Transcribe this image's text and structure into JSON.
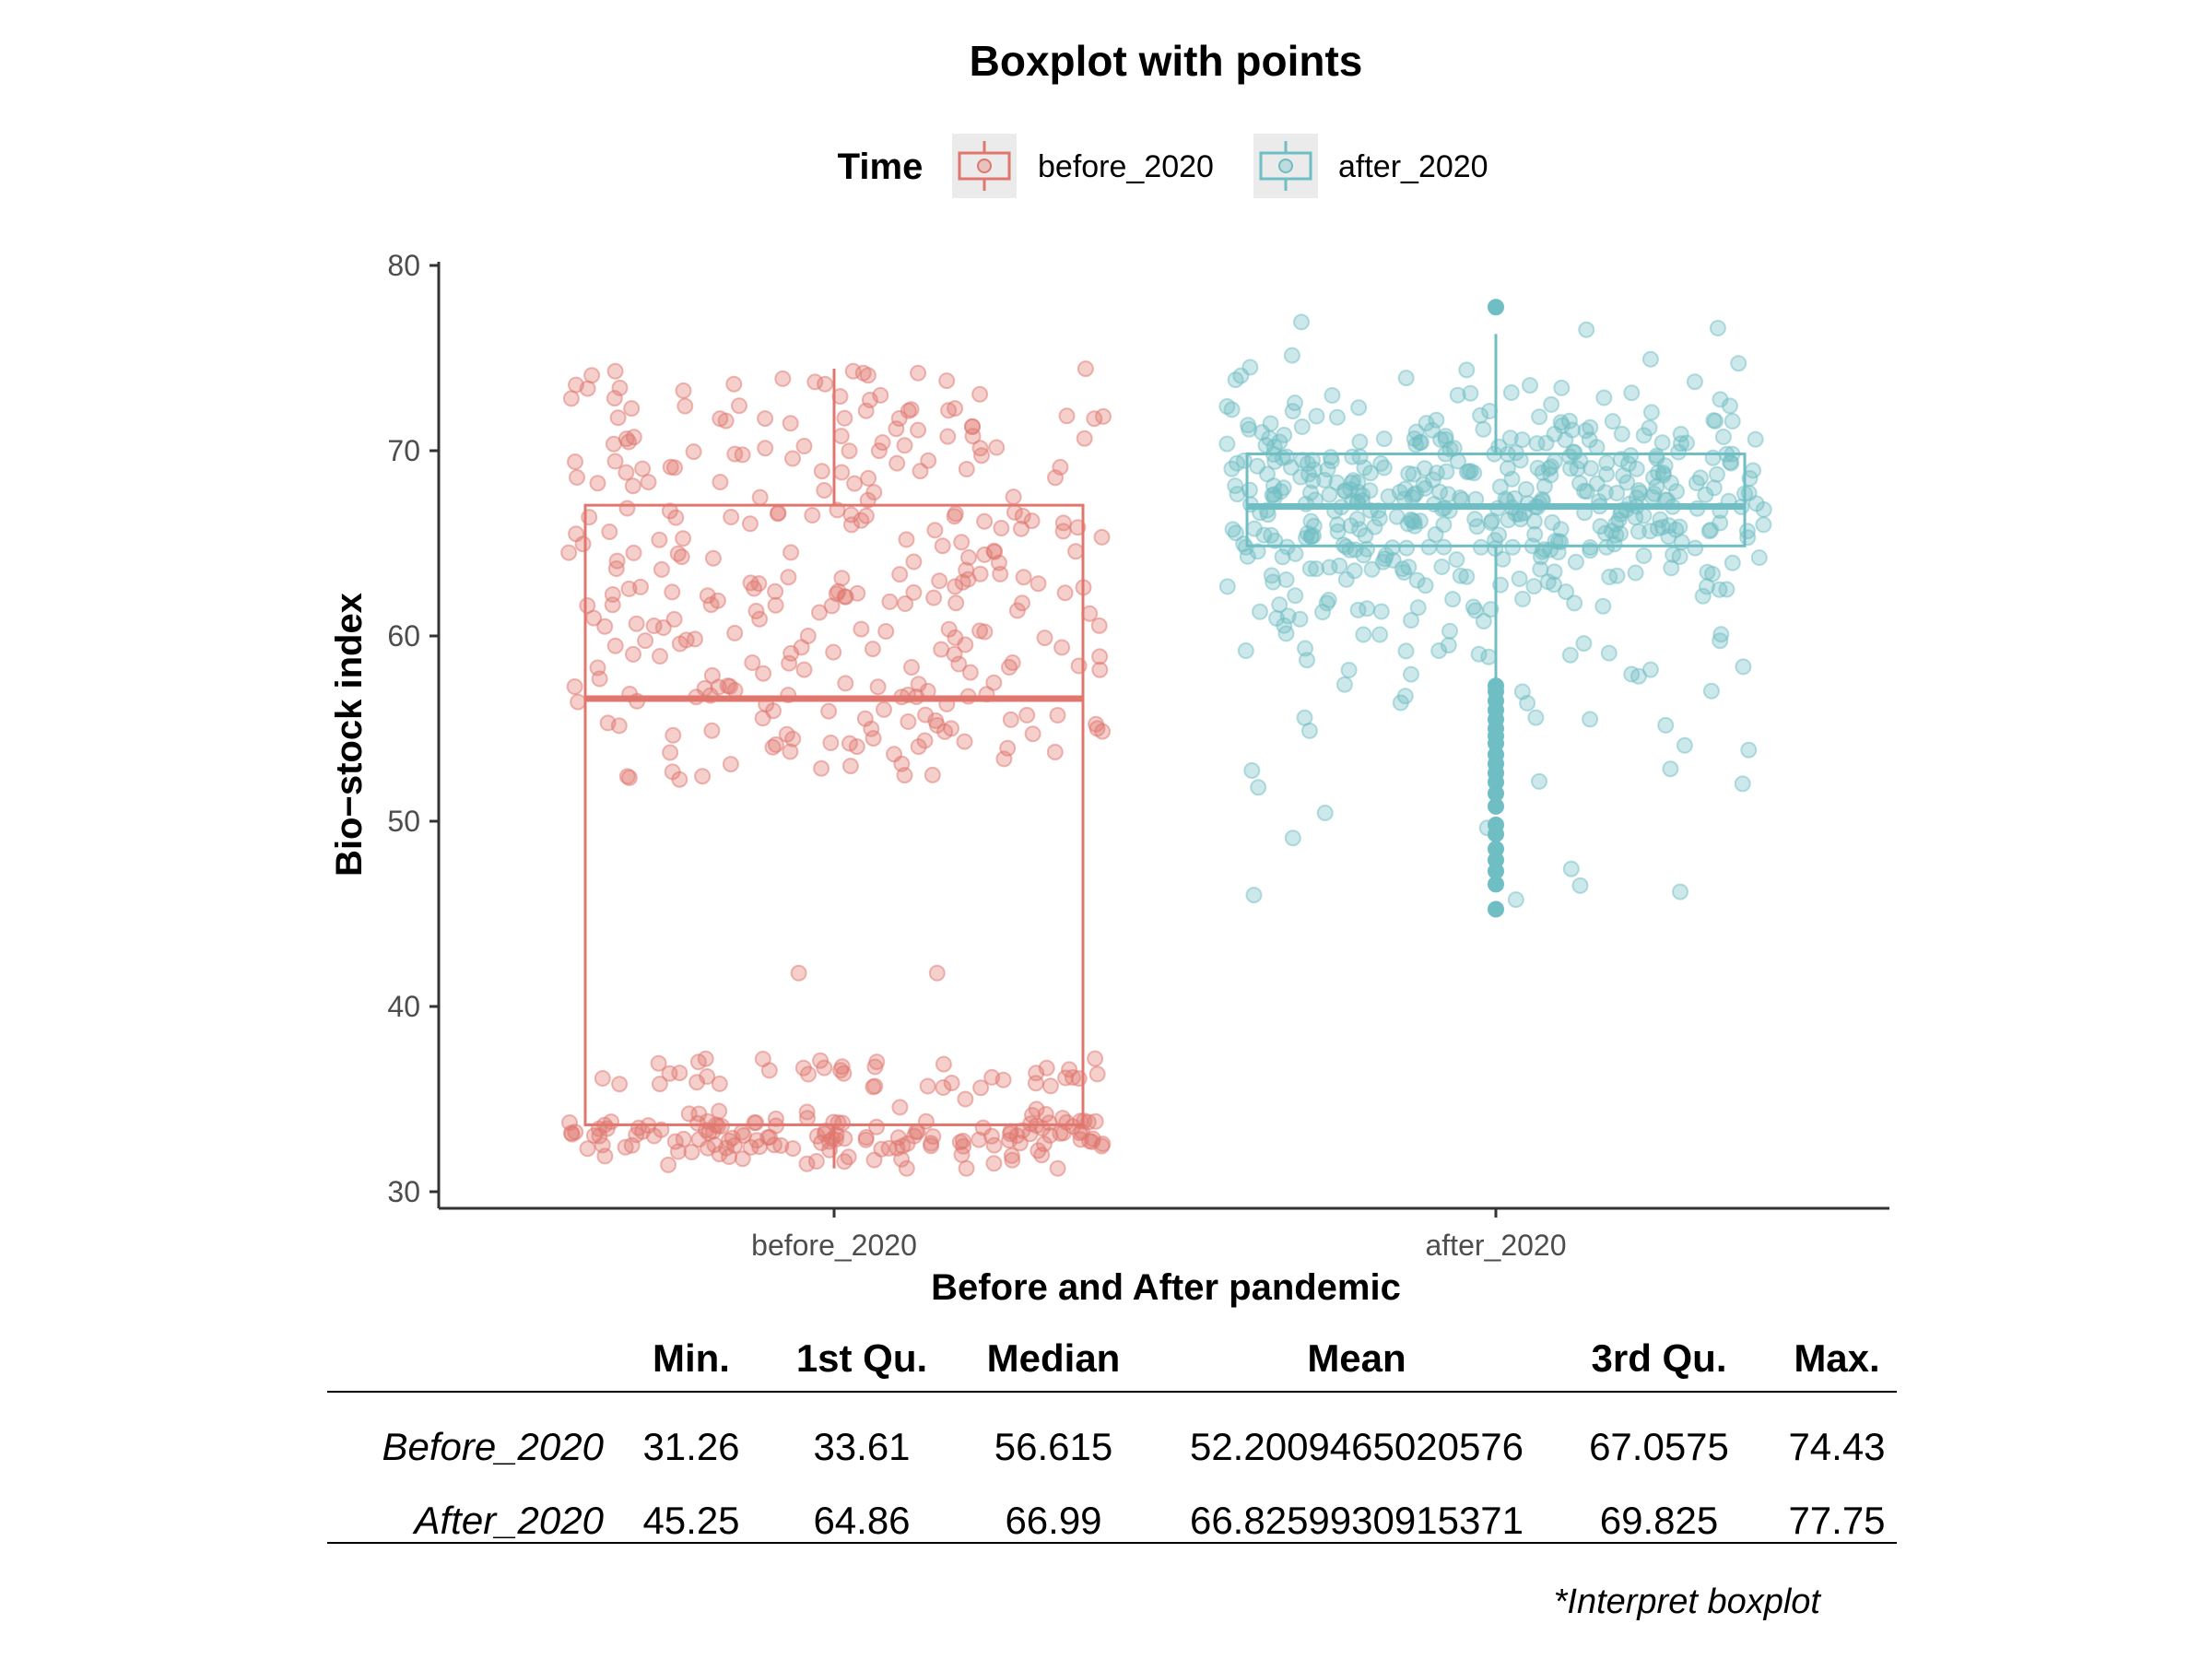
{
  "chart_data": {
    "type": "boxplot",
    "title": "Boxplot with points",
    "xlabel": "Before and After pandemic",
    "ylabel": "Bio−stock index",
    "ylim": [
      29,
      81
    ],
    "yticks": [
      30,
      40,
      50,
      60,
      70,
      80
    ],
    "grid": false,
    "legend": {
      "title": "Time",
      "position": "top",
      "entries": [
        "before_2020",
        "after_2020"
      ]
    },
    "categories": [
      "before_2020",
      "after_2020"
    ],
    "series": [
      {
        "name": "before_2020",
        "color": "#e0766e",
        "min": 31.26,
        "q1": 33.61,
        "median": 56.615,
        "q3": 67.0575,
        "max": 74.43,
        "whisker_low": 31.26,
        "whisker_high": 74.43,
        "outliers": [],
        "n_points": 500
      },
      {
        "name": "after_2020",
        "color": "#6fbec4",
        "min": 45.25,
        "q1": 64.86,
        "median": 66.99,
        "q3": 69.825,
        "max": 77.75,
        "whisker_low": 57.5,
        "whisker_high": 76.3,
        "outliers": [
          45.25,
          46.6,
          47.3,
          47.9,
          48.5,
          49.3,
          49.8,
          50.8,
          51.5,
          52.1,
          52.6,
          53.1,
          53.6,
          54.2,
          54.6,
          55.0,
          55.5,
          56.0,
          56.5,
          57.0,
          57.3,
          77.75
        ],
        "n_points": 500
      }
    ]
  },
  "summary_table": {
    "headers": [
      "",
      "Min.",
      "1st Qu.",
      "Median",
      "Mean",
      "3rd Qu.",
      "Max."
    ],
    "rows": [
      {
        "name": "Before_2020",
        "values": [
          "31.26",
          "33.61",
          "56.615",
          "52.2009465020576",
          "67.0575",
          "74.43"
        ]
      },
      {
        "name": "After_2020",
        "values": [
          "45.25",
          "64.86",
          "66.99",
          "66.8259930915371",
          "69.825",
          "77.75"
        ]
      }
    ]
  },
  "note": "*Interpret boxplot"
}
